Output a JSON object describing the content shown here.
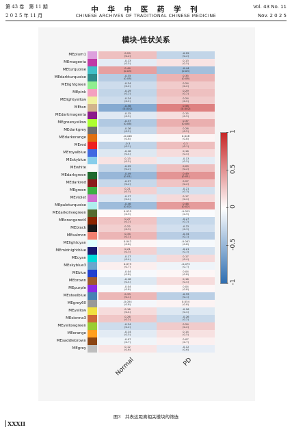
{
  "header": {
    "left_top": "第 43 卷　第 11 期",
    "left_bottom": "2 0 2 5 年 11 月",
    "journal_cn": "中 华 中 医 药 学 刊",
    "journal_en": "CHINESE  ARCHIVES  OF  TRADITIONAL  CHINESE  MEDICINE",
    "right_top": "Vol. 43  No. 11",
    "right_bottom": "Nov.  2 0 2 5"
  },
  "figure": {
    "title": "模块-性状关系",
    "caption": "图3　共表达距离相关模块的筛选",
    "page_number": "XXXII"
  },
  "chart_data": {
    "type": "heatmap",
    "title": "模块-性状关系",
    "x_categories": [
      "Normal",
      "PD"
    ],
    "colorbar": {
      "min": -1,
      "max": 1,
      "ticks": [
        "1",
        "0.5",
        "0",
        "-0.5",
        "-1"
      ],
      "low_color": "#2d6db0",
      "mid_color": "#ffffff",
      "high_color": "#c62626"
    },
    "rows": [
      {
        "module": "MEplum1",
        "color": "#dda0dd",
        "normal": 0.29,
        "normal_p": "(0.2)",
        "pd": -0.29,
        "pd_p": "(0.2)"
      },
      {
        "module": "MEmagenta",
        "color": "#c03aa6",
        "normal": -0.13,
        "normal_p": "(0.5)",
        "pd": 0.13,
        "pd_p": "(0.5)"
      },
      {
        "module": "MEturquoise",
        "color": "#40c0c8",
        "normal": 0.44,
        "normal_p": "(0.03)",
        "pd": -0.44,
        "pd_p": "(0.03)"
      },
      {
        "module": "MEdarkturquoise",
        "color": "#2e8b8b",
        "normal": -0.35,
        "normal_p": "(0.08)",
        "pd": 0.35,
        "pd_p": "(0.08)"
      },
      {
        "module": "MElightgreen",
        "color": "#90ee90",
        "normal": -0.24,
        "normal_p": "(0.2)",
        "pd": 0.24,
        "pd_p": "(0.2)"
      },
      {
        "module": "MEpink",
        "color": "#f4a0c0",
        "normal": -0.29,
        "normal_p": "(0.2)",
        "pd": 0.29,
        "pd_p": "(0.2)"
      },
      {
        "module": "MElightyellow",
        "color": "#f0f0a0",
        "normal": -0.24,
        "normal_p": "(0.2)",
        "pd": 0.24,
        "pd_p": "(0.2)"
      },
      {
        "module": "MEtan",
        "color": "#d2b48c",
        "normal": -0.58,
        "normal_p": "(0.002)",
        "pd": 0.58,
        "pd_p": "(0.002)"
      },
      {
        "module": "MEdarkmagenta",
        "color": "#8b1a8b",
        "normal": -0.15,
        "normal_p": "(0.5)",
        "pd": 0.15,
        "pd_p": "(0.5)"
      },
      {
        "module": "MEgreenyellow",
        "color": "#adff2f",
        "normal": -0.37,
        "normal_p": "(0.06)",
        "pd": 0.37,
        "pd_p": "(0.06)"
      },
      {
        "module": "MEdarkgrey",
        "color": "#6e6e6e",
        "normal": -0.26,
        "normal_p": "(0.2)",
        "pd": 0.26,
        "pd_p": "(0.2)"
      },
      {
        "module": "MEdarkorange",
        "color": "#e07010",
        "normal": -0.048,
        "normal_p": "(0.8)",
        "pd": 0.048,
        "pd_p": "(0.8)"
      },
      {
        "module": "MEred",
        "color": "#ee2020",
        "normal": -0.3,
        "normal_p": "(0.1)",
        "pd": 0.3,
        "pd_p": "(0.1)"
      },
      {
        "module": "MEroyalblue",
        "color": "#4169e1",
        "normal": -0.16,
        "normal_p": "(0.4)",
        "pd": 0.16,
        "pd_p": "(0.4)"
      },
      {
        "module": "MEskyblue",
        "color": "#87ceeb",
        "normal": 0.13,
        "normal_p": "(0.5)",
        "pd": -0.13,
        "pd_p": "(0.5)"
      },
      {
        "module": "MEwhite",
        "color": "#f8f8f8",
        "normal": -0.29,
        "normal_p": "(0.2)",
        "pd": 0.29,
        "pd_p": "(0.2)"
      },
      {
        "module": "MEdarkgreen",
        "color": "#1e6a2e",
        "normal": -0.49,
        "normal_p": "(0.01)",
        "pd": 0.49,
        "pd_p": "(0.01)"
      },
      {
        "module": "MEdarkred",
        "color": "#8b1a1a",
        "normal": -0.27,
        "normal_p": "(0.2)",
        "pd": 0.27,
        "pd_p": "(0.2)"
      },
      {
        "module": "MEgreen",
        "color": "#3cb043",
        "normal": 0.21,
        "normal_p": "(0.3)",
        "pd": -0.21,
        "pd_p": "(0.3)"
      },
      {
        "module": "MEviolet",
        "color": "#d070d0",
        "normal": -0.17,
        "normal_p": "(0.4)",
        "pd": 0.17,
        "pd_p": "(0.4)"
      },
      {
        "module": "MEpaleturquoise",
        "color": "#afeeee",
        "normal": -0.46,
        "normal_p": "(0.02)",
        "pd": 0.46,
        "pd_p": "(0.02)"
      },
      {
        "module": "MEdarkolivegreen",
        "color": "#556b2f",
        "normal": 0.025,
        "normal_p": "(0.9)",
        "pd": -0.025,
        "pd_p": "(0.9)"
      },
      {
        "module": "MEorangered4",
        "color": "#8b2500",
        "normal": 0.27,
        "normal_p": "(0.2)",
        "pd": -0.27,
        "pd_p": "(0.2)"
      },
      {
        "module": "MEblack",
        "color": "#1a1a1a",
        "normal": 0.22,
        "normal_p": "(0.3)",
        "pd": -0.22,
        "pd_p": "(0.3)"
      },
      {
        "module": "MEsalmon",
        "color": "#f08070",
        "normal": 0.34,
        "normal_p": "(0.1)",
        "pd": -0.34,
        "pd_p": "(0.1)"
      },
      {
        "module": "MElightcyan",
        "color": "#e0ffff",
        "normal": 0.042,
        "normal_p": "(0.8)",
        "pd": -0.042,
        "pd_p": "(0.8)"
      },
      {
        "module": "MEmidnightblue",
        "color": "#191970",
        "normal": 0.21,
        "normal_p": "(0.3)",
        "pd": -0.21,
        "pd_p": "(0.3)"
      },
      {
        "module": "MEcyan",
        "color": "#00d8d8",
        "normal": -0.17,
        "normal_p": "(0.4)",
        "pd": 0.17,
        "pd_p": "(0.4)"
      },
      {
        "module": "MEskyblue3",
        "color": "#6ca6cd",
        "normal": 0.075,
        "normal_p": "(0.7)",
        "pd": -0.075,
        "pd_p": "(0.7)"
      },
      {
        "module": "MEblue",
        "color": "#2040d0",
        "normal": -0.04,
        "normal_p": "(0.8)",
        "pd": 0.04,
        "pd_p": "(0.8)"
      },
      {
        "module": "MEbrown",
        "color": "#a05a2c",
        "normal": -0.16,
        "normal_p": "(0.4)",
        "pd": 0.16,
        "pd_p": "(0.4)"
      },
      {
        "module": "MEpurple",
        "color": "#8a2be2",
        "normal": -0.04,
        "normal_p": "(0.8)",
        "pd": 0.04,
        "pd_p": "(0.8)"
      },
      {
        "module": "MEsteelblue",
        "color": "#4682b4",
        "normal": 0.33,
        "normal_p": "(0.1)",
        "pd": -0.33,
        "pd_p": "(0.1)"
      },
      {
        "module": "MEgrey60",
        "color": "#999999",
        "normal": -0.054,
        "normal_p": "(0.8)",
        "pd": 0.054,
        "pd_p": "(0.8)"
      },
      {
        "module": "MEyellow",
        "color": "#f0e040",
        "normal": 0.16,
        "normal_p": "(0.4)",
        "pd": -0.16,
        "pd_p": "(0.4)"
      },
      {
        "module": "MEsienna3",
        "color": "#cd6839",
        "normal": 0.26,
        "normal_p": "(0.2)",
        "pd": -0.26,
        "pd_p": "(0.2)"
      },
      {
        "module": "MEyellowgreen",
        "color": "#9acd32",
        "normal": -0.24,
        "normal_p": "(0.2)",
        "pd": 0.24,
        "pd_p": "(0.2)"
      },
      {
        "module": "MEorange",
        "color": "#ffa020",
        "normal": -0.14,
        "normal_p": "(0.5)",
        "pd": 0.14,
        "pd_p": "(0.5)"
      },
      {
        "module": "MEsaddlebrown",
        "color": "#8b4513",
        "normal": -0.07,
        "normal_p": "(0.7)",
        "pd": 0.07,
        "pd_p": "(0.7)"
      },
      {
        "module": "MEgrey",
        "color": "#bebebe",
        "normal": 0.12,
        "normal_p": "(0.6)",
        "pd": -0.12,
        "pd_p": "(0.6)"
      }
    ]
  }
}
